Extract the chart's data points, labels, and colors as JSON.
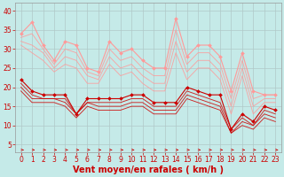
{
  "bg_color": "#c5eae8",
  "grid_color": "#b0c8c8",
  "xlabel": "Vent moyen/en rafales ( km/h )",
  "xlabel_color": "#cc0000",
  "xlim": [
    -0.5,
    23.5
  ],
  "ylim": [
    3,
    42
  ],
  "yticks": [
    5,
    10,
    15,
    20,
    25,
    30,
    35,
    40
  ],
  "xticks": [
    0,
    1,
    2,
    3,
    4,
    5,
    6,
    7,
    8,
    9,
    10,
    11,
    12,
    13,
    14,
    15,
    16,
    17,
    18,
    19,
    20,
    21,
    22,
    23
  ],
  "lines_dark": [
    [
      22,
      19,
      18,
      18,
      18,
      13,
      17,
      17,
      17,
      17,
      18,
      18,
      16,
      16,
      16,
      20,
      19,
      18,
      18,
      9,
      13,
      11,
      15,
      14
    ],
    [
      21,
      18,
      17,
      17,
      17,
      13,
      16,
      16,
      16,
      16,
      17,
      17,
      15,
      15,
      15,
      19,
      18,
      17,
      16,
      9,
      12,
      10,
      14,
      13
    ],
    [
      20,
      17,
      17,
      17,
      16,
      13,
      16,
      15,
      15,
      15,
      16,
      16,
      14,
      14,
      14,
      18,
      17,
      16,
      15,
      8,
      11,
      10,
      13,
      12
    ],
    [
      19,
      16,
      16,
      16,
      15,
      12,
      15,
      14,
      14,
      14,
      15,
      15,
      13,
      13,
      13,
      17,
      16,
      15,
      14,
      8,
      10,
      9,
      12,
      11
    ]
  ],
  "lines_pink": [
    [
      34,
      37,
      31,
      27,
      32,
      31,
      25,
      24,
      32,
      29,
      30,
      27,
      25,
      25,
      38,
      28,
      31,
      31,
      28,
      19,
      29,
      19,
      18,
      18
    ],
    [
      33,
      34,
      30,
      26,
      30,
      29,
      24,
      23,
      30,
      27,
      28,
      25,
      23,
      23,
      35,
      26,
      29,
      29,
      26,
      17,
      27,
      17,
      18,
      18
    ],
    [
      32,
      31,
      29,
      25,
      28,
      27,
      23,
      22,
      28,
      25,
      26,
      23,
      21,
      21,
      32,
      24,
      27,
      27,
      24,
      15,
      25,
      15,
      17,
      17
    ],
    [
      31,
      29,
      27,
      24,
      26,
      25,
      21,
      21,
      26,
      23,
      24,
      21,
      19,
      19,
      29,
      22,
      25,
      25,
      22,
      13,
      23,
      13,
      16,
      16
    ]
  ],
  "dark_color": "#cc0000",
  "pink_color": "#ff9999",
  "lw": 0.8,
  "marker": "D",
  "ms": 2.0,
  "tick_fontsize": 5.5,
  "xlabel_fontsize": 7,
  "arrow_color": "#cc0000"
}
